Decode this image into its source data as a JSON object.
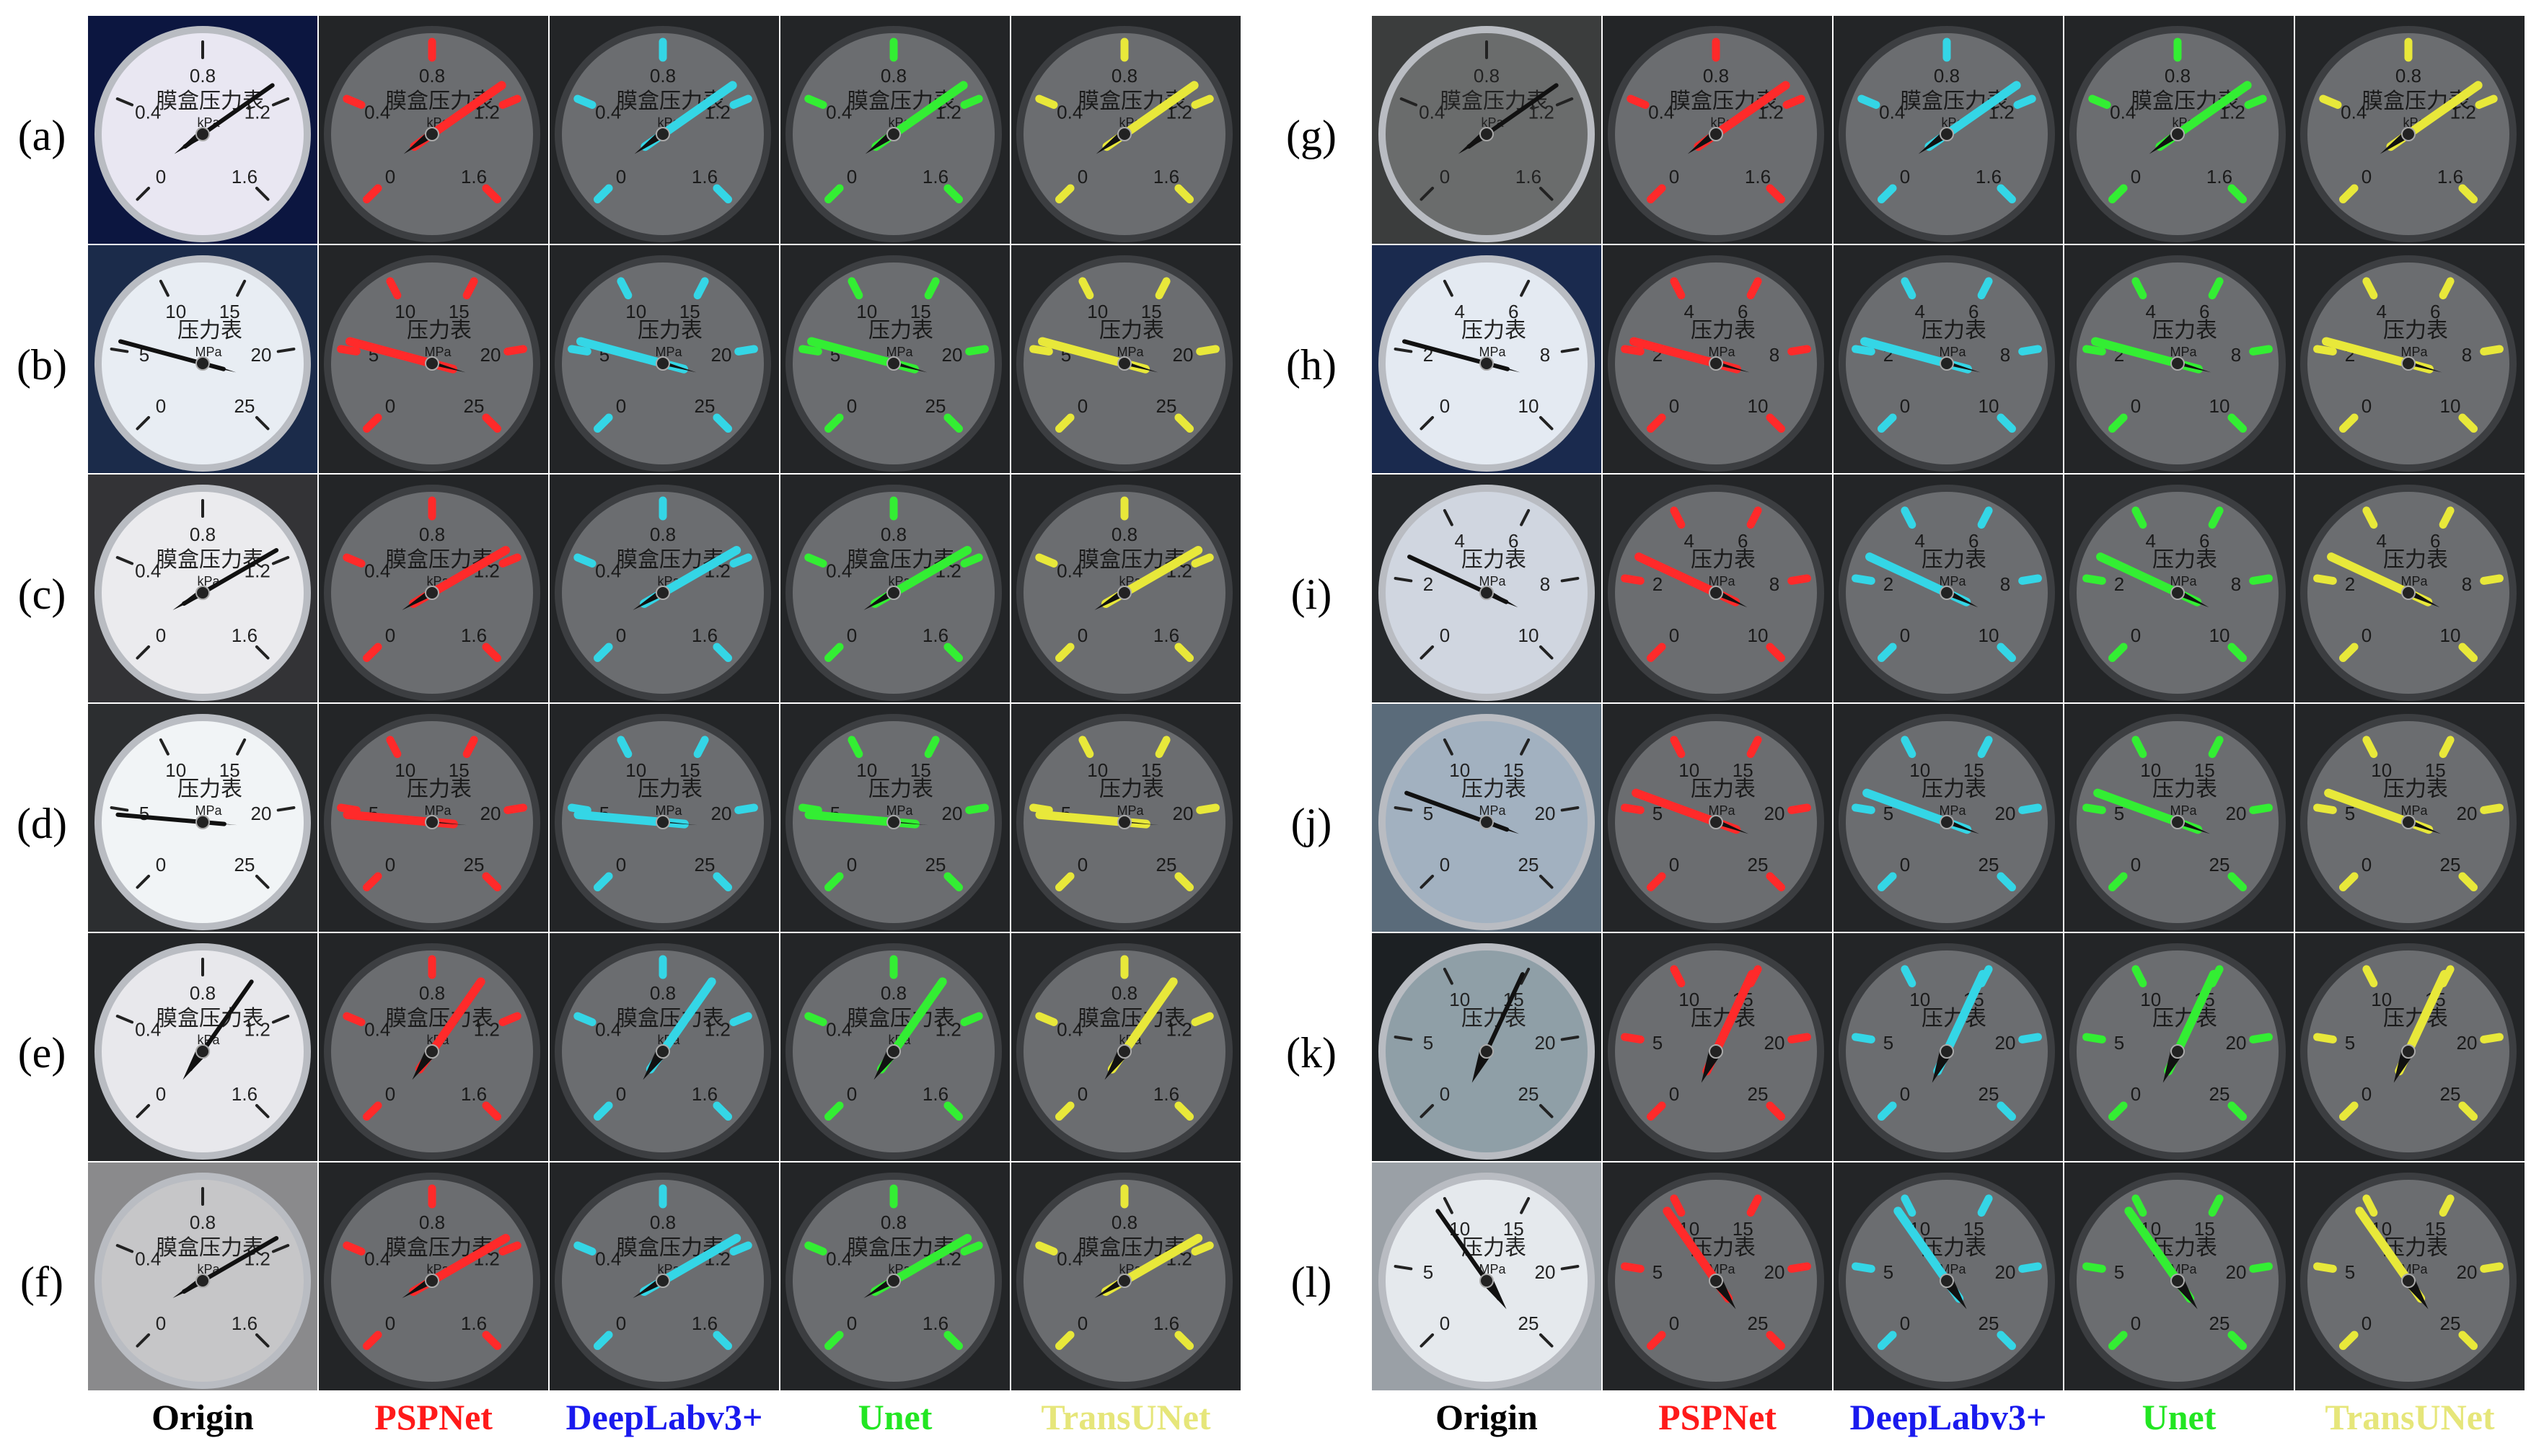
{
  "columns": [
    {
      "label": "Origin",
      "color": "#000000",
      "mask": "none"
    },
    {
      "label": "PSPNet",
      "color": "#ff1a1a",
      "mask": "#ff2a2a"
    },
    {
      "label": "DeepLabv3+",
      "color": "#1a1aee",
      "mask": "#34d6e6"
    },
    {
      "label": "Unet",
      "color": "#22e622",
      "mask": "#33ee33"
    },
    {
      "label": "TransUNet",
      "color": "#e6e67a",
      "mask": "#e8e83a"
    }
  ],
  "panels": [
    {
      "rows": [
        {
          "label": "(a)",
          "gauge": "mpa",
          "angle": 55,
          "bg": "#0c1640",
          "face": "#e9e7f2",
          "bright": true
        },
        {
          "label": "(b)",
          "gauge": "big",
          "angle": -75,
          "bg": "#1b2b4a",
          "face": "#e8edf3",
          "bright": true
        },
        {
          "label": "(c)",
          "gauge": "mpa",
          "angle": 60,
          "bg": "#333336",
          "face": "#ebebee",
          "bright": true
        },
        {
          "label": "(d)",
          "gauge": "big",
          "angle": -85,
          "bg": "#2c2e30",
          "face": "#f1f4f6",
          "bright": true
        },
        {
          "label": "(e)",
          "gauge": "mpa",
          "angle": 35,
          "bg": "#232527",
          "face": "#e8e8ec",
          "bright": true
        },
        {
          "label": "(f)",
          "gauge": "mpa",
          "angle": 60,
          "bg": "#8a8a8c",
          "face": "#c6c6c8",
          "bright": false
        }
      ]
    },
    {
      "rows": [
        {
          "label": "(g)",
          "gauge": "mpa",
          "angle": 55,
          "bg": "#3b3d3d",
          "face": "#6a6c6c",
          "bright": false
        },
        {
          "label": "(h)",
          "gauge": "h",
          "angle": -75,
          "bg": "#1a2a4e",
          "face": "#e4eaf2",
          "bright": true
        },
        {
          "label": "(i)",
          "gauge": "h",
          "angle": -65,
          "bg": "#25282b",
          "face": "#d0d6e0",
          "bright": true
        },
        {
          "label": "(j)",
          "gauge": "big",
          "angle": -70,
          "bg": "#5a6b7a",
          "face": "#a2b1c0",
          "bright": false
        },
        {
          "label": "(k)",
          "gauge": "k",
          "angle": 25,
          "bg": "#1c2023",
          "face": "#8f9fa7",
          "bright": false
        },
        {
          "label": "(l)",
          "gauge": "big",
          "angle": -35,
          "bg": "#9aa0a6",
          "face": "#e5e9ed",
          "bright": true
        }
      ]
    }
  ],
  "gauges": {
    "mpa": {
      "title": "膜盒压力表",
      "unit": "kPa",
      "ticks": [
        "0",
        "0.4",
        "0.8",
        "1.2",
        "1.6"
      ]
    },
    "big": {
      "title": "压力表",
      "unit": "MPa",
      "ticks": [
        "0",
        "5",
        "10",
        "15",
        "20",
        "25"
      ]
    },
    "h": {
      "title": "压力表",
      "unit": "MPa",
      "ticks": [
        "0",
        "2",
        "4",
        "6",
        "8",
        "10"
      ]
    },
    "k": {
      "title": "压力表",
      "unit": "",
      "ticks": [
        "0",
        "5",
        "10",
        "15",
        "20",
        "25"
      ]
    }
  }
}
